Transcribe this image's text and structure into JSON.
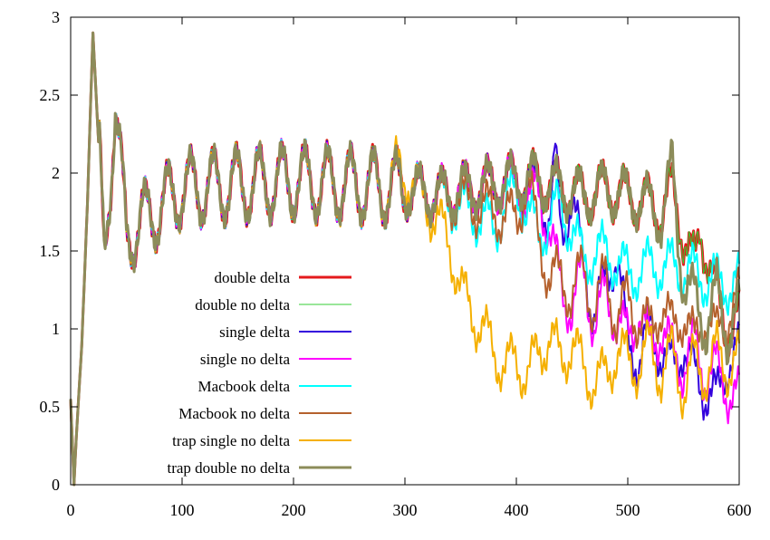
{
  "chart_data": {
    "type": "line",
    "title": "",
    "xlabel": "",
    "ylabel": "",
    "xlim": [
      0,
      600
    ],
    "ylim": [
      0,
      3
    ],
    "grid": false,
    "legend_position": "center-left",
    "x_ticks": [
      0,
      100,
      200,
      300,
      400,
      500,
      600
    ],
    "y_ticks": [
      0,
      0.5,
      1,
      1.5,
      2,
      2.5,
      3
    ],
    "x_tick_labels": [
      "0",
      "100",
      "200",
      "300",
      "400",
      "500",
      "600"
    ],
    "y_tick_labels": [
      "0",
      "0.5",
      "1",
      "1.5",
      "2",
      "2.5",
      "3"
    ],
    "series": [
      {
        "name": "double delta",
        "color": "#e41a1c",
        "width": 3,
        "x": [
          0,
          3,
          5,
          10,
          15,
          20,
          25,
          30,
          40,
          50,
          100,
          200,
          300,
          330,
          360,
          400,
          420,
          440,
          460,
          480,
          500,
          520,
          530,
          540,
          550,
          560,
          565,
          570,
          580,
          590,
          600
        ],
        "y": [
          0.55,
          0.0,
          0.3,
          0.9,
          1.8,
          2.9,
          2.2,
          1.5,
          2.4,
          1.6,
          1.9,
          1.95,
          1.9,
          1.85,
          1.9,
          1.95,
          1.95,
          1.9,
          1.85,
          1.9,
          1.85,
          1.8,
          1.75,
          1.9,
          1.6,
          1.4,
          1.65,
          1.5,
          1.2,
          1.0,
          1.05
        ]
      },
      {
        "name": "double no delta",
        "color": "#33cc33",
        "width": 1,
        "x": [
          0,
          3,
          5,
          10,
          15,
          20,
          25,
          30,
          40,
          50,
          100,
          200,
          300,
          330,
          360,
          400,
          420,
          440,
          460,
          480,
          500,
          520,
          530,
          540,
          550,
          560,
          565,
          570,
          580,
          590,
          600
        ],
        "y": [
          0.55,
          0.0,
          0.3,
          0.9,
          1.8,
          2.9,
          2.2,
          1.5,
          2.4,
          1.6,
          1.9,
          1.95,
          1.9,
          1.85,
          1.9,
          1.95,
          1.95,
          1.9,
          1.85,
          1.9,
          1.85,
          1.8,
          1.75,
          1.9,
          1.6,
          1.4,
          1.65,
          1.5,
          1.2,
          1.0,
          1.05
        ]
      },
      {
        "name": "single delta",
        "color": "#3300dd",
        "width": 2,
        "x": [
          0,
          3,
          5,
          10,
          15,
          20,
          25,
          30,
          40,
          50,
          100,
          200,
          300,
          330,
          360,
          400,
          420,
          430,
          435,
          440,
          450,
          460,
          470,
          480,
          490,
          500,
          510,
          520,
          530,
          540,
          550,
          560,
          570,
          580,
          590,
          600
        ],
        "y": [
          0.55,
          0.0,
          0.3,
          0.9,
          1.8,
          2.9,
          2.2,
          1.5,
          2.4,
          1.6,
          1.9,
          1.95,
          1.9,
          1.85,
          1.9,
          1.95,
          1.9,
          1.7,
          2.1,
          1.6,
          1.85,
          1.4,
          1.1,
          1.3,
          1.5,
          0.9,
          0.8,
          1.0,
          0.85,
          0.75,
          0.9,
          0.7,
          0.6,
          0.55,
          0.8,
          0.85
        ]
      },
      {
        "name": "single no delta",
        "color": "#ff00ff",
        "width": 2,
        "x": [
          0,
          3,
          5,
          10,
          15,
          20,
          25,
          30,
          40,
          50,
          100,
          200,
          300,
          330,
          360,
          400,
          410,
          420,
          430,
          440,
          450,
          460,
          470,
          480,
          490,
          500,
          510,
          520,
          530,
          540,
          550,
          560,
          570,
          580,
          590,
          600
        ],
        "y": [
          0.55,
          0.0,
          0.3,
          0.9,
          1.8,
          2.9,
          2.2,
          1.5,
          2.4,
          1.6,
          1.9,
          1.95,
          1.9,
          1.85,
          1.9,
          1.95,
          1.8,
          1.9,
          1.6,
          1.3,
          1.1,
          1.4,
          1.0,
          1.25,
          1.05,
          0.95,
          1.1,
          0.9,
          1.0,
          0.85,
          0.75,
          0.9,
          0.7,
          0.75,
          0.6,
          0.55
        ]
      },
      {
        "name": "Macbook delta",
        "color": "#00ffff",
        "width": 2,
        "x": [
          0,
          3,
          5,
          10,
          15,
          20,
          25,
          30,
          40,
          50,
          100,
          200,
          300,
          330,
          360,
          380,
          400,
          420,
          440,
          460,
          480,
          500,
          520,
          540,
          560,
          580,
          600
        ],
        "y": [
          0.55,
          0.0,
          0.3,
          0.9,
          1.8,
          2.9,
          2.2,
          1.5,
          2.4,
          1.6,
          1.9,
          1.95,
          1.9,
          1.85,
          1.75,
          1.65,
          1.9,
          1.6,
          1.8,
          1.45,
          1.5,
          1.35,
          1.4,
          1.4,
          1.35,
          1.3,
          1.28
        ]
      },
      {
        "name": "Macbook no delta",
        "color": "#b5612d",
        "width": 2,
        "x": [
          0,
          3,
          5,
          10,
          15,
          20,
          25,
          30,
          40,
          50,
          100,
          200,
          300,
          330,
          360,
          380,
          400,
          410,
          420,
          430,
          440,
          450,
          460,
          470,
          480,
          490,
          500,
          510,
          520,
          530,
          540,
          550,
          560,
          570,
          580,
          590,
          600
        ],
        "y": [
          0.55,
          0.0,
          0.3,
          0.9,
          1.8,
          2.9,
          2.2,
          1.5,
          2.4,
          1.6,
          1.9,
          1.95,
          1.9,
          1.85,
          1.8,
          1.75,
          1.7,
          1.95,
          1.6,
          1.3,
          1.35,
          1.2,
          1.4,
          1.1,
          1.35,
          1.05,
          1.2,
          1.05,
          1.0,
          1.15,
          1.0,
          1.1,
          0.9,
          1.1,
          0.95,
          1.1,
          1.2
        ]
      },
      {
        "name": "trap single no delta",
        "color": "#f5b000",
        "width": 2,
        "x": [
          0,
          3,
          5,
          10,
          15,
          20,
          25,
          30,
          40,
          50,
          100,
          200,
          280,
          300,
          320,
          340,
          350,
          360,
          370,
          380,
          390,
          400,
          410,
          420,
          430,
          440,
          450,
          460,
          470,
          480,
          490,
          500,
          510,
          520,
          530,
          540,
          550,
          560,
          570,
          580,
          590,
          600
        ],
        "y": [
          0.55,
          0.0,
          0.3,
          0.9,
          1.8,
          2.9,
          2.2,
          1.5,
          2.4,
          1.6,
          1.9,
          1.95,
          1.9,
          2.0,
          1.8,
          1.55,
          1.25,
          1.1,
          1.0,
          0.85,
          0.75,
          0.8,
          0.7,
          0.85,
          0.95,
          0.8,
          0.9,
          0.75,
          0.65,
          0.7,
          0.85,
          0.8,
          0.75,
          0.9,
          0.7,
          0.85,
          0.6,
          0.8,
          0.7,
          0.85,
          0.75,
          0.8
        ]
      },
      {
        "name": "trap double no delta",
        "color": "#8c8c5a",
        "width": 3,
        "x": [
          0,
          3,
          5,
          10,
          15,
          20,
          25,
          30,
          40,
          50,
          100,
          200,
          300,
          330,
          360,
          400,
          420,
          440,
          460,
          480,
          500,
          520,
          530,
          540,
          545,
          550,
          560,
          570,
          580,
          590,
          600
        ],
        "y": [
          0.55,
          0.0,
          0.3,
          0.9,
          1.8,
          2.9,
          2.2,
          1.5,
          2.4,
          1.6,
          1.9,
          1.95,
          1.9,
          1.85,
          1.9,
          1.95,
          1.95,
          1.9,
          1.85,
          1.9,
          1.85,
          1.8,
          1.7,
          2.05,
          1.6,
          1.3,
          1.2,
          1.0,
          1.25,
          0.95,
          1.15
        ]
      }
    ]
  }
}
